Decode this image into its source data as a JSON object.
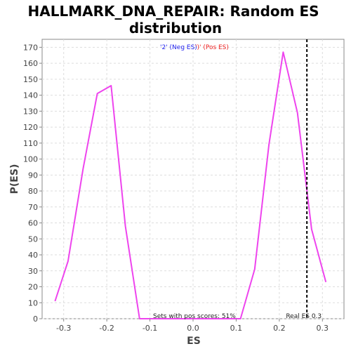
{
  "chart_data": {
    "type": "line",
    "title_line1": "HALLMARK_DNA_REPAIR: Random ES",
    "title_line2": "distribution",
    "xlabel": "ES",
    "ylabel": "P(ES)",
    "xlim": [
      -0.35,
      0.35
    ],
    "ylim": [
      0,
      175
    ],
    "x_ticks": [
      -0.3,
      -0.2,
      -0.1,
      0.0,
      0.1,
      0.2,
      0.3
    ],
    "x_tick_labels": [
      "-0.3",
      "-0.2",
      "-0.1",
      "0.0",
      "0.1",
      "0.2",
      "0.3"
    ],
    "y_ticks": [
      0,
      10,
      20,
      30,
      40,
      50,
      60,
      70,
      80,
      90,
      100,
      110,
      120,
      130,
      140,
      150,
      160,
      170
    ],
    "y_tick_labels": [
      "0",
      "10",
      "20",
      "30",
      "40",
      "50",
      "60",
      "70",
      "80",
      "90",
      "100",
      "110",
      "120",
      "130",
      "140",
      "150",
      "160",
      "170"
    ],
    "grid": true,
    "series": [
      {
        "color": "#ee44ee",
        "x": [
          -0.32,
          -0.29,
          -0.255,
          -0.222,
          -0.19,
          -0.157,
          -0.124,
          -0.1,
          0.11,
          0.143,
          0.176,
          0.209,
          0.242,
          0.275,
          0.308
        ],
        "y": [
          11,
          36,
          94,
          141,
          146,
          58,
          0,
          0,
          0,
          31,
          109,
          167,
          129,
          56,
          23
        ]
      }
    ],
    "real_es": {
      "x": 0.264,
      "label": "Real ES 0.3",
      "color": "#000000"
    },
    "legend": {
      "neg_text": "'2' (Neg ES)",
      "neg_color": "#2222ee",
      "pos_text": "')' (Pos ES)",
      "pos_color": "#ee2222"
    },
    "annotation": "Sets with pos scores: 51%"
  },
  "colors": {
    "background": "#ffffff",
    "plot_background": "#ffffff",
    "grid": "#dddddd",
    "axis": "#888888"
  }
}
